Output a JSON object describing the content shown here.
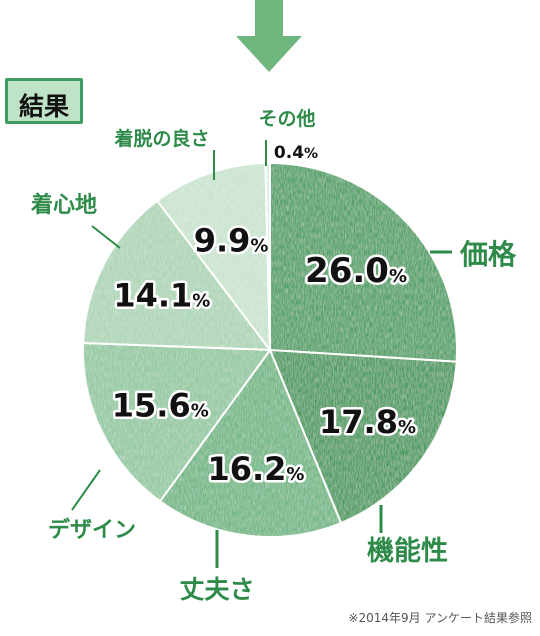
{
  "header": {
    "badge_label": "結果"
  },
  "footer": {
    "note": "※2014年9月 アンケート結果参照"
  },
  "colors": {
    "label_green": "#2e8b4a",
    "arrow_green": "#6fb57e",
    "slice_colors": [
      "#55a26a",
      "#4f9c63",
      "#74b887",
      "#94c9a2",
      "#aed6b7",
      "#c9e4cf",
      "#ddeedf"
    ]
  },
  "chart_data": {
    "type": "pie",
    "title": "",
    "start": "12 o'clock, clockwise",
    "categories": [
      "価格",
      "機能性",
      "丈夫さ",
      "デザイン",
      "着心地",
      "着脱の良さ",
      "その他"
    ],
    "values": [
      26.0,
      17.8,
      16.2,
      15.6,
      14.1,
      9.9,
      0.4
    ],
    "value_labels": [
      "26.0",
      "17.8",
      "16.2",
      "15.6",
      "14.1",
      "9.9",
      "0.4"
    ],
    "unit": "%"
  }
}
